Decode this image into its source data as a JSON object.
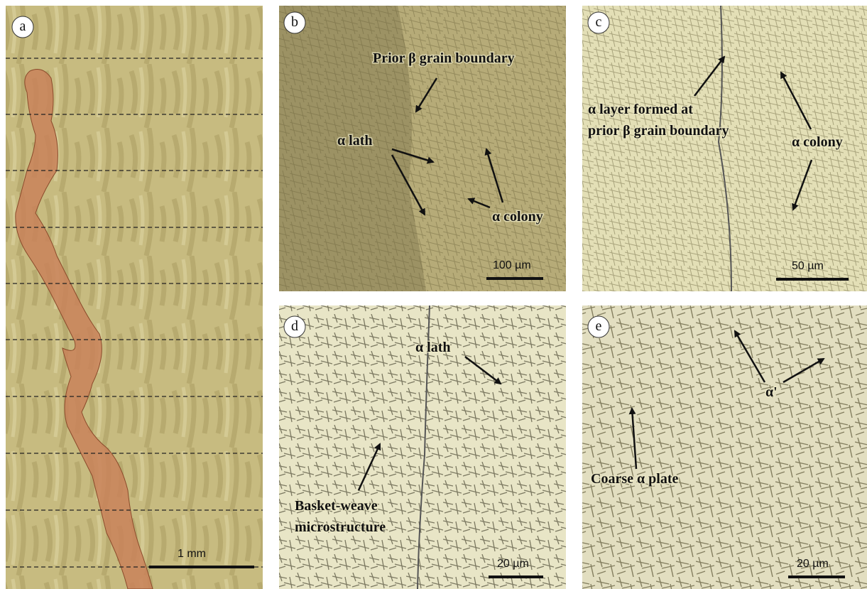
{
  "panels": [
    {
      "letter": "a",
      "scale_bar": "1 mm",
      "labels": []
    },
    {
      "letter": "b",
      "scale_bar": "100 µm",
      "labels": [
        "Prior β grain boundary",
        "α lath",
        "α colony"
      ]
    },
    {
      "letter": "c",
      "scale_bar": "50 µm",
      "labels": [
        "α layer formed at",
        "prior β grain boundary",
        "α colony"
      ]
    },
    {
      "letter": "d",
      "scale_bar": "20 µm",
      "labels": [
        "α lath",
        "Basket-weave",
        "microstructure"
      ]
    },
    {
      "letter": "e",
      "scale_bar": "20 µm",
      "labels": [
        "α'",
        "Coarse α plate"
      ]
    }
  ]
}
